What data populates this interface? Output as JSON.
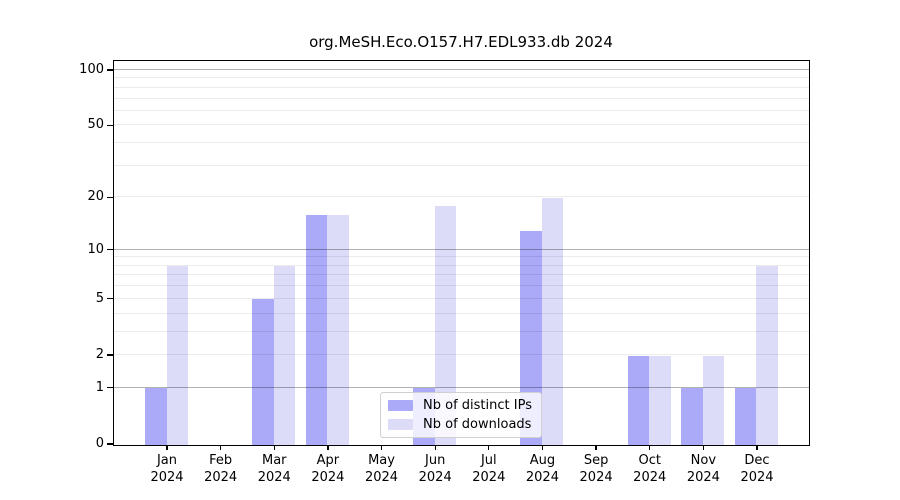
{
  "chart_data": {
    "type": "bar",
    "title": "org.MeSH.Eco.O157.H7.EDL933.db 2024",
    "categories": [
      "Jan",
      "Feb",
      "Mar",
      "Apr",
      "May",
      "Jun",
      "Jul",
      "Aug",
      "Sep",
      "Oct",
      "Nov",
      "Dec"
    ],
    "category_year": "2024",
    "series": [
      {
        "name": "Nb of distinct IPs",
        "color": "#aaaaf8",
        "values": [
          1,
          0,
          5,
          16,
          0,
          1,
          0,
          13,
          0,
          2,
          1,
          1
        ]
      },
      {
        "name": "Nb of downloads",
        "color": "#dcdcf9",
        "values": [
          8,
          0,
          8,
          16,
          0,
          18,
          0,
          20,
          0,
          2,
          2,
          8
        ]
      }
    ],
    "xlabel": "",
    "ylabel": "",
    "yscale": "log1p",
    "ylim": [
      0,
      100
    ],
    "yticks": [
      0,
      1,
      2,
      5,
      10,
      20,
      50,
      100
    ],
    "major_gridlines": [
      1,
      10,
      100
    ],
    "minor_gridlines": [
      2,
      3,
      4,
      5,
      6,
      7,
      8,
      9,
      20,
      30,
      40,
      50,
      60,
      70,
      80,
      90
    ],
    "grid": true,
    "legend_position": "lower center",
    "colors": {
      "distinct_ips_bar": "#aaaaf8",
      "downloads_bar": "#dcdcf9",
      "axis": "#000000",
      "major_gridline": "#b0b0b0",
      "minor_gridline": "#ebebeb",
      "background": "#ffffff"
    }
  }
}
